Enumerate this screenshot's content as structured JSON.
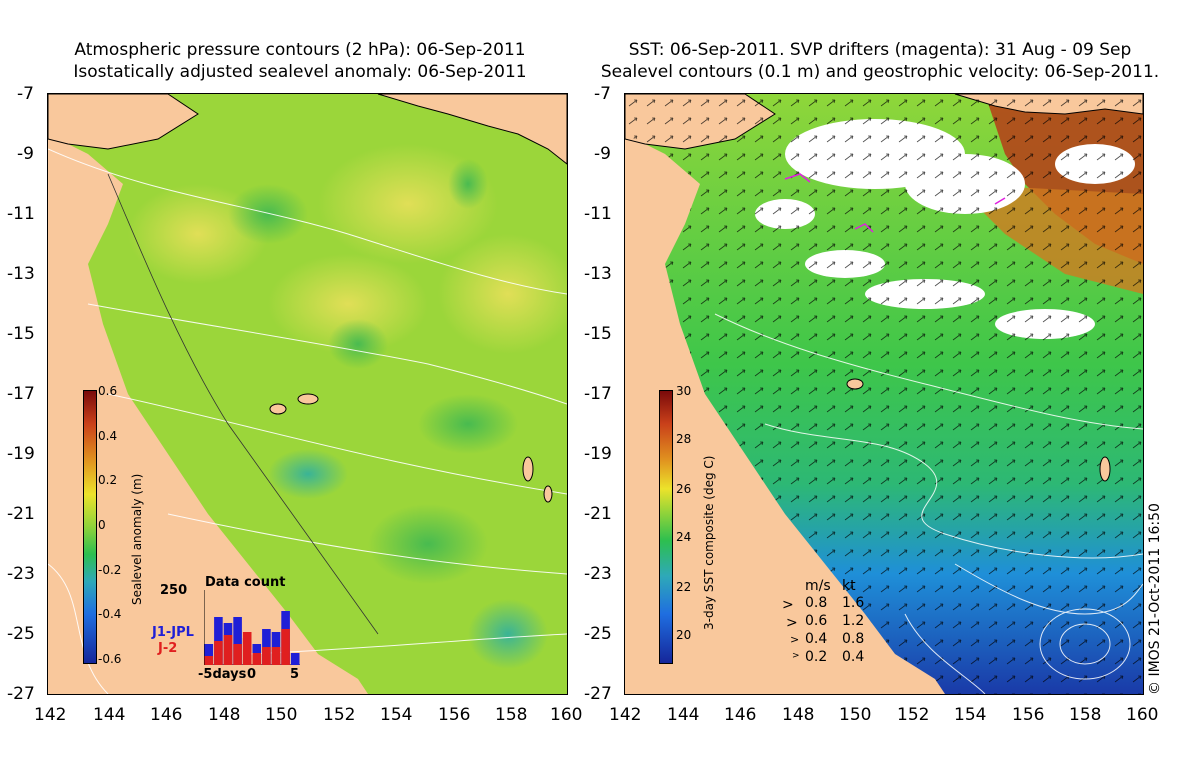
{
  "left_panel": {
    "title_line1": "Atmospheric pressure contours (2 hPa): 06-Sep-2011",
    "title_line2": "Isostatically adjusted sealevel anomaly: 06-Sep-2011",
    "colorbar": {
      "label": "Sealevel anomaly (m)",
      "ticks": [
        "0.6",
        "0.4",
        "0.2",
        "0",
        "-0.2",
        "-0.4",
        "-0.6"
      ]
    },
    "data_count": {
      "title": "Data count",
      "y_max_label": "250",
      "x_labels": [
        "-5days",
        "0",
        "5"
      ],
      "series": [
        {
          "name": "J1-JPL",
          "color": "#1f1fd6",
          "values": [
            70,
            160,
            140,
            160,
            90,
            70,
            120,
            110,
            180,
            40
          ]
        },
        {
          "name": "J-2",
          "color": "#e01f1f",
          "values": [
            30,
            80,
            100,
            70,
            110,
            40,
            60,
            60,
            120,
            0
          ]
        }
      ]
    }
  },
  "right_panel": {
    "title_line1": "SST: 06-Sep-2011. SVP drifters (magenta): 31 Aug - 09 Sep",
    "title_line2": "Sealevel contours (0.1 m) and geostrophic velocity: 06-Sep-2011.",
    "colorbar": {
      "label": "3-day SST composite (deg C)",
      "ticks": [
        "30",
        "28",
        "26",
        "24",
        "22",
        "20"
      ]
    },
    "velocity_legend": {
      "header_ms": "m/s",
      "header_kt": "kt",
      "rows": [
        {
          "ms": "0.8",
          "kt": "1.6"
        },
        {
          "ms": "0.6",
          "kt": "1.2"
        },
        {
          "ms": "0.4",
          "kt": "0.8"
        },
        {
          "ms": "0.2",
          "kt": "0.4"
        }
      ]
    }
  },
  "axes": {
    "lat_ticks": [
      "-7",
      "-9",
      "-11",
      "-13",
      "-15",
      "-17",
      "-19",
      "-21",
      "-23",
      "-25",
      "-27"
    ],
    "lon_ticks": [
      "142",
      "144",
      "146",
      "148",
      "150",
      "152",
      "154",
      "156",
      "158",
      "160"
    ]
  },
  "credit": "© IMOS 21-Oct-2011 16:50",
  "colors": {
    "land": "#f9c89c",
    "sla_sea": "#9bd63a",
    "sst_sea": "#2db85a"
  }
}
